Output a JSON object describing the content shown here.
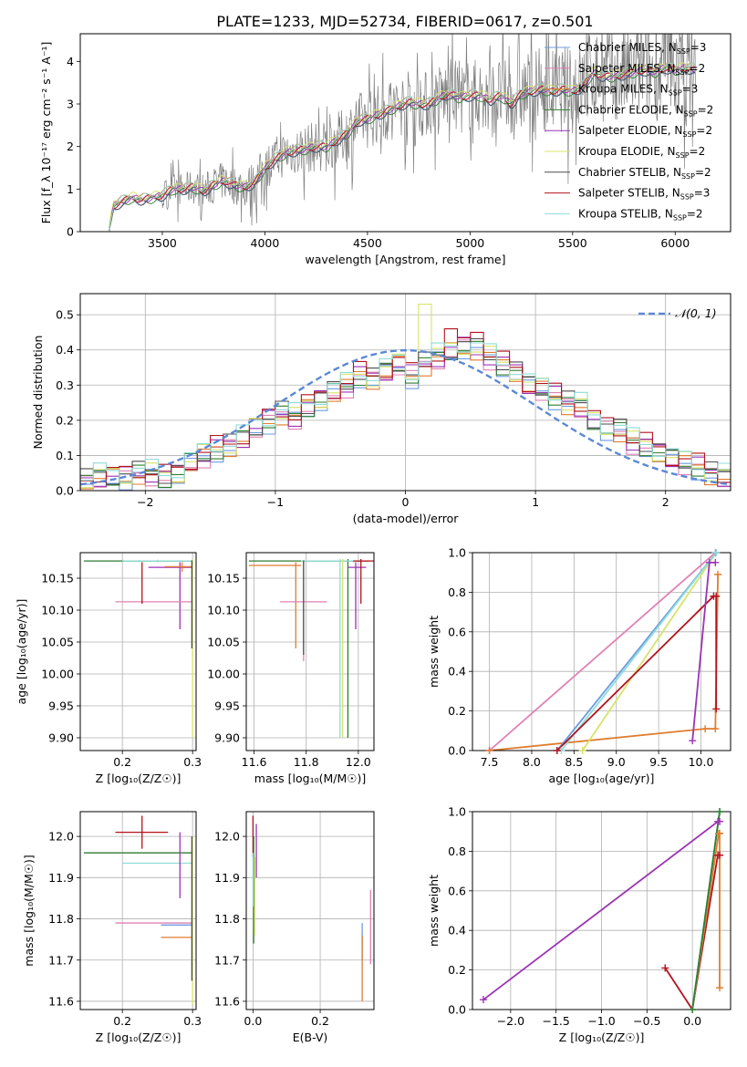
{
  "figure": {
    "title": "PLATE=1233, MJD=52734, FIBERID=0617, z=0.501"
  },
  "colors": {
    "Chabrier MILES": "#6b9be0",
    "Salpeter MILES": "#e081b5",
    "Kroupa MILES": "#e07c2e",
    "Chabrier ELODIE": "#2f7d32",
    "Salpeter ELODIE": "#9c33b5",
    "Kroupa ELODIE": "#d7e36b",
    "Chabrier STELIB": "#4d4d4d",
    "Salpeter STELIB": "#b3121d",
    "Kroupa STELIB": "#8fdcd8",
    "data": "#808080",
    "normal": "#5b88d6"
  },
  "chart_data": [
    {
      "id": "spectrum",
      "type": "line",
      "xlabel": "wavelength [Angstrom, rest frame]",
      "ylabel": "Flux [f_λ 10⁻¹⁷ erg cm⁻² s⁻¹ A⁻¹]",
      "xlim": [
        3100,
        6270
      ],
      "ylim": [
        0,
        4.65
      ],
      "xticks": [
        3500,
        4000,
        4500,
        5000,
        5500,
        6000
      ],
      "yticks": [
        0,
        1,
        2,
        3,
        4
      ],
      "grid": false,
      "legend_position": "top-right",
      "legend": [
        {
          "model": "Chabrier MILES",
          "label": "Chabrier MILES, N_SSP=3"
        },
        {
          "model": "Salpeter MILES",
          "label": "Salpeter MILES, N_SSP=2"
        },
        {
          "model": "Kroupa MILES",
          "label": "Kroupa MILES, N_SSP=3"
        },
        {
          "model": "Chabrier ELODIE",
          "label": "Chabrier ELODIE, N_SSP=2"
        },
        {
          "model": "Salpeter ELODIE",
          "label": "Salpeter ELODIE, N_SSP=2"
        },
        {
          "model": "Kroupa ELODIE",
          "label": "Kroupa ELODIE, N_SSP=2"
        },
        {
          "model": "Chabrier STELIB",
          "label": "Chabrier STELIB, N_SSP=2"
        },
        {
          "model": "Salpeter STELIB",
          "label": "Salpeter STELIB, N_SSP=3"
        },
        {
          "model": "Kroupa STELIB",
          "label": "Kroupa STELIB, N_SSP=2"
        }
      ],
      "continuum": {
        "x": [
          3240,
          3260,
          3300,
          3350,
          3400,
          3450,
          3500,
          3550,
          3600,
          3650,
          3700,
          3750,
          3800,
          3850,
          3900,
          3950,
          4000,
          4050,
          4100,
          4150,
          4200,
          4250,
          4300,
          4350,
          4400,
          4450,
          4500,
          4550,
          4600,
          4650,
          4700,
          4750,
          4800,
          4850,
          4900,
          4950,
          5000,
          5050,
          5100,
          5150,
          5200,
          5250,
          5300,
          5350,
          5400,
          5450,
          5500,
          5550,
          5600,
          5650,
          5700,
          5750,
          5800,
          5850,
          5900,
          5950,
          6000,
          6050,
          6100
        ],
        "y": [
          0.0,
          0.6,
          0.7,
          0.8,
          0.75,
          0.8,
          0.85,
          1.0,
          1.0,
          1.05,
          0.95,
          1.1,
          1.2,
          1.1,
          1.05,
          1.15,
          1.5,
          1.7,
          1.85,
          1.9,
          1.95,
          2.0,
          2.0,
          2.15,
          2.3,
          2.6,
          2.65,
          2.75,
          2.85,
          2.95,
          3.05,
          3.0,
          3.0,
          3.15,
          3.25,
          3.15,
          3.2,
          3.2,
          3.1,
          3.2,
          3.0,
          3.25,
          3.3,
          3.35,
          3.3,
          3.35,
          3.3,
          3.4,
          3.75,
          3.65,
          3.65,
          3.7,
          3.75,
          3.8,
          3.75,
          3.85,
          3.8,
          3.85,
          3.8
        ]
      },
      "data_noise_start": 3500
    },
    {
      "id": "residuals",
      "type": "histogram",
      "xlabel": "(data-model)/error",
      "ylabel": "Normed distribution",
      "xlim": [
        -2.5,
        2.5
      ],
      "ylim": [
        0,
        0.56
      ],
      "xticks": [
        -2,
        -1,
        0,
        1,
        2
      ],
      "yticks": [
        0.0,
        0.1,
        0.2,
        0.3,
        0.4,
        0.5
      ],
      "grid": true,
      "legend": "𝒩(0, 1)",
      "legend_position": "top-right",
      "bin_edges": [
        -2.5,
        -2.4,
        -2.3,
        -2.2,
        -2.1,
        -2.0,
        -1.9,
        -1.8,
        -1.7,
        -1.6,
        -1.5,
        -1.4,
        -1.3,
        -1.2,
        -1.1,
        -1.0,
        -0.9,
        -0.8,
        -0.7,
        -0.6,
        -0.5,
        -0.4,
        -0.3,
        -0.2,
        -0.1,
        0.0,
        0.1,
        0.2,
        0.3,
        0.4,
        0.5,
        0.6,
        0.7,
        0.8,
        0.9,
        1.0,
        1.1,
        1.2,
        1.3,
        1.4,
        1.5,
        1.6,
        1.7,
        1.8,
        1.9,
        2.0,
        2.1,
        2.2,
        2.3,
        2.4,
        2.5
      ],
      "base_counts": [
        0.03,
        0.04,
        0.04,
        0.04,
        0.05,
        0.05,
        0.04,
        0.05,
        0.08,
        0.1,
        0.12,
        0.13,
        0.15,
        0.18,
        0.2,
        0.22,
        0.21,
        0.24,
        0.26,
        0.28,
        0.3,
        0.33,
        0.32,
        0.34,
        0.36,
        0.33,
        0.36,
        0.38,
        0.4,
        0.41,
        0.4,
        0.38,
        0.36,
        0.34,
        0.3,
        0.29,
        0.27,
        0.25,
        0.24,
        0.2,
        0.18,
        0.17,
        0.14,
        0.13,
        0.11,
        0.09,
        0.08,
        0.07,
        0.05,
        0.04
      ],
      "spikes": [
        {
          "model": "Kroupa ELODIE",
          "bin": 26,
          "value": 0.53
        },
        {
          "model": "Salpeter STELIB",
          "bin": 28,
          "value": 0.46
        },
        {
          "model": "Salpeter STELIB",
          "bin": 30,
          "value": 0.45
        }
      ]
    },
    {
      "id": "age_vs_Z",
      "type": "errorbar",
      "xlabel": "Z [log₁₀(Z/Z☉)]",
      "ylabel": "age  [log₁₀(age/yr)]",
      "xlim": [
        0.14,
        0.305
      ],
      "ylim": [
        9.88,
        10.19
      ],
      "xticks": [
        0.2,
        0.3
      ],
      "yticks": [
        9.9,
        9.95,
        10.0,
        10.05,
        10.1,
        10.15
      ],
      "grid": true,
      "points": [
        {
          "model": "Chabrier ELODIE",
          "x": 0.224,
          "y": 10.177,
          "xlo": 0.145,
          "xhi": 0.3,
          "ylo": 10.176,
          "yhi": 10.178
        },
        {
          "model": "Kroupa STELIB",
          "x": 0.25,
          "y": 10.177,
          "xlo": 0.2,
          "xhi": 0.3,
          "ylo": 10.175,
          "yhi": 10.179
        },
        {
          "model": "Salpeter ELODIE",
          "x": 0.282,
          "y": 10.167,
          "xlo": 0.237,
          "xhi": 0.3,
          "ylo": 10.07,
          "yhi": 10.175
        },
        {
          "model": "Salpeter MILES",
          "x": 0.235,
          "y": 10.113,
          "xlo": 0.19,
          "xhi": 0.3,
          "ylo": 10.113,
          "yhi": 10.113
        },
        {
          "model": "Salpeter STELIB",
          "x": 0.228,
          "y": 10.165,
          "xlo": 0.228,
          "xhi": 0.228,
          "ylo": 10.11,
          "yhi": 10.175
        },
        {
          "model": "Kroupa MILES",
          "x": 0.285,
          "y": 10.168,
          "xlo": 0.26,
          "xhi": 0.3,
          "ylo": 10.16,
          "yhi": 10.175
        },
        {
          "model": "Kroupa ELODIE",
          "x": 0.3,
          "y": 10.176,
          "xlo": 0.3,
          "xhi": 0.3,
          "ylo": 9.9,
          "yhi": 10.18
        },
        {
          "model": "Chabrier STELIB",
          "x": 0.299,
          "y": 10.17,
          "xlo": 0.299,
          "xhi": 0.299,
          "ylo": 10.04,
          "yhi": 10.178
        }
      ]
    },
    {
      "id": "age_vs_mass",
      "type": "errorbar",
      "xlabel": "mass [log₁₀(M/M☉)]",
      "xlim": [
        11.57,
        12.06
      ],
      "ylim": [
        9.88,
        10.19
      ],
      "xticks": [
        11.6,
        11.8,
        12.0
      ],
      "yticks": [
        9.9,
        9.95,
        10.0,
        10.05,
        10.1,
        10.15
      ],
      "grid": true,
      "points": [
        {
          "model": "Kroupa MILES",
          "x": 11.76,
          "y": 10.17,
          "xlo": 11.58,
          "xhi": 11.78,
          "ylo": 10.04,
          "yhi": 10.175
        },
        {
          "model": "Salpeter MILES",
          "x": 11.79,
          "y": 10.113,
          "xlo": 11.7,
          "xhi": 11.88,
          "ylo": 10.02,
          "yhi": 10.175
        },
        {
          "model": "Chabrier ELODIE",
          "x": 11.96,
          "y": 10.177,
          "xlo": 11.58,
          "xhi": 12.04,
          "ylo": 9.9,
          "yhi": 10.18
        },
        {
          "model": "Kroupa STELIB",
          "x": 11.93,
          "y": 10.177,
          "xlo": 11.78,
          "xhi": 12.0,
          "ylo": 9.9,
          "yhi": 10.18
        },
        {
          "model": "Salpeter ELODIE",
          "x": 11.99,
          "y": 10.167,
          "xlo": 11.96,
          "xhi": 12.03,
          "ylo": 10.07,
          "yhi": 10.175
        },
        {
          "model": "Salpeter STELIB",
          "x": 12.01,
          "y": 10.177,
          "xlo": 11.98,
          "xhi": 12.06,
          "ylo": 10.11,
          "yhi": 10.18
        },
        {
          "model": "Kroupa ELODIE",
          "x": 11.94,
          "y": 10.176,
          "xlo": 11.94,
          "xhi": 11.94,
          "ylo": 9.9,
          "yhi": 10.18
        },
        {
          "model": "Chabrier STELIB",
          "x": 11.79,
          "y": 10.17,
          "xlo": 11.79,
          "xhi": 11.79,
          "ylo": 10.03,
          "yhi": 10.178
        }
      ]
    },
    {
      "id": "weight_vs_age",
      "type": "line",
      "xlabel": "age  [log₁₀(age/yr)]",
      "ylabel": "mass weight",
      "xlim": [
        7.3,
        10.35
      ],
      "ylim": [
        0,
        1
      ],
      "xticks": [
        7.5,
        8.0,
        8.5,
        9.0,
        9.5,
        10.0
      ],
      "yticks": [
        0.0,
        0.2,
        0.4,
        0.6,
        0.8,
        1.0
      ],
      "grid": true,
      "series": [
        {
          "model": "Salpeter MILES",
          "x": [
            7.5,
            10.17
          ],
          "y": [
            0.0,
            1.0
          ]
        },
        {
          "model": "Kroupa MILES",
          "x": [
            7.5,
            10.05,
            10.17,
            10.2
          ],
          "y": [
            0.0,
            0.11,
            0.11,
            0.89
          ]
        },
        {
          "model": "Kroupa ELODIE",
          "x": [
            8.6,
            10.18
          ],
          "y": [
            0.0,
            1.0
          ]
        },
        {
          "model": "Chabrier MILES",
          "x": [
            8.3,
            10.18
          ],
          "y": [
            0.0,
            1.0
          ]
        },
        {
          "model": "Kroupa STELIB",
          "x": [
            8.35,
            10.18
          ],
          "y": [
            0.0,
            1.0
          ]
        },
        {
          "model": "Salpeter STELIB",
          "x": [
            8.3,
            10.15,
            10.18,
            10.18
          ],
          "y": [
            0.0,
            0.78,
            0.78,
            0.21
          ]
        },
        {
          "model": "Salpeter ELODIE",
          "x": [
            9.9,
            10.1,
            10.17
          ],
          "y": [
            0.05,
            0.95,
            0.95
          ]
        }
      ]
    },
    {
      "id": "mass_vs_Z",
      "type": "errorbar",
      "xlabel": "Z [log₁₀(Z/Z☉)]",
      "ylabel": "mass [log₁₀(M/M☉)]",
      "xlim": [
        0.14,
        0.305
      ],
      "ylim": [
        11.58,
        12.06
      ],
      "xticks": [
        0.2,
        0.3
      ],
      "yticks": [
        11.6,
        11.7,
        11.8,
        11.9,
        12.0
      ],
      "grid": true,
      "points": [
        {
          "model": "Salpeter STELIB",
          "x": 0.228,
          "y": 12.01,
          "xlo": 0.19,
          "xhi": 0.265,
          "ylo": 11.97,
          "yhi": 12.05
        },
        {
          "model": "Chabrier ELODIE",
          "x": 0.224,
          "y": 11.96,
          "xlo": 0.145,
          "xhi": 0.3,
          "ylo": 11.96,
          "yhi": 11.96
        },
        {
          "model": "Kroupa STELIB",
          "x": 0.25,
          "y": 11.935,
          "xlo": 0.2,
          "xhi": 0.3,
          "ylo": 11.935,
          "yhi": 11.935
        },
        {
          "model": "Salpeter ELODIE",
          "x": 0.282,
          "y": 11.99,
          "xlo": 0.282,
          "xhi": 0.282,
          "ylo": 11.85,
          "yhi": 12.01
        },
        {
          "model": "Salpeter MILES",
          "x": 0.235,
          "y": 11.79,
          "xlo": 0.19,
          "xhi": 0.3,
          "ylo": 11.79,
          "yhi": 11.79
        },
        {
          "model": "Chabrier MILES",
          "x": 0.28,
          "y": 11.785,
          "xlo": 0.255,
          "xhi": 0.3,
          "ylo": 11.785,
          "yhi": 11.785
        },
        {
          "model": "Kroupa MILES",
          "x": 0.28,
          "y": 11.755,
          "xlo": 0.255,
          "xhi": 0.3,
          "ylo": 11.755,
          "yhi": 11.755
        },
        {
          "model": "Kroupa ELODIE",
          "x": 0.3,
          "y": 11.8,
          "xlo": 0.3,
          "xhi": 0.3,
          "ylo": 11.59,
          "yhi": 12.0
        },
        {
          "model": "Chabrier STELIB",
          "x": 0.299,
          "y": 11.8,
          "xlo": 0.299,
          "xhi": 0.299,
          "ylo": 11.65,
          "yhi": 12.0
        }
      ]
    },
    {
      "id": "mass_vs_ebv",
      "type": "errorbar",
      "xlabel": "E(B-V)",
      "xlim": [
        -0.02,
        0.36
      ],
      "ylim": [
        11.58,
        12.06
      ],
      "xticks": [
        0.0,
        0.2
      ],
      "yticks": [
        11.6,
        11.7,
        11.8,
        11.9,
        12.0
      ],
      "grid": true,
      "points": [
        {
          "model": "Salpeter STELIB",
          "x": 0.0,
          "y": 12.0,
          "xlo": 0.0,
          "xhi": 0.0,
          "ylo": 11.95,
          "yhi": 12.05
        },
        {
          "model": "Salpeter ELODIE",
          "x": 0.01,
          "y": 11.97,
          "xlo": 0.01,
          "xhi": 0.01,
          "ylo": 11.9,
          "yhi": 12.03
        },
        {
          "model": "Chabrier ELODIE",
          "x": 0.002,
          "y": 11.9,
          "xlo": 0.002,
          "xhi": 0.002,
          "ylo": 11.74,
          "yhi": 12.0
        },
        {
          "model": "Kroupa ELODIE",
          "x": 0.005,
          "y": 11.85,
          "xlo": 0.005,
          "xhi": 0.005,
          "ylo": 11.76,
          "yhi": 11.95
        },
        {
          "model": "Kroupa STELIB",
          "x": 0.0,
          "y": 11.93,
          "xlo": 0.0,
          "xhi": 0.0,
          "ylo": 11.83,
          "yhi": 11.96
        },
        {
          "model": "Chabrier MILES",
          "x": 0.325,
          "y": 11.76,
          "xlo": 0.325,
          "xhi": 0.325,
          "ylo": 11.7,
          "yhi": 11.79
        },
        {
          "model": "Kroupa MILES",
          "x": 0.325,
          "y": 11.68,
          "xlo": 0.325,
          "xhi": 0.325,
          "ylo": 11.6,
          "yhi": 11.76
        },
        {
          "model": "Salpeter MILES",
          "x": 0.35,
          "y": 11.78,
          "xlo": 0.35,
          "xhi": 0.35,
          "ylo": 11.69,
          "yhi": 11.87
        }
      ]
    },
    {
      "id": "weight_vs_Z",
      "type": "line",
      "xlabel": "Z [log₁₀(Z/Z☉)]",
      "ylabel": "mass weight",
      "xlim": [
        -2.42,
        0.42
      ],
      "ylim": [
        0,
        1
      ],
      "xticks": [
        -2.0,
        -1.5,
        -1.0,
        -0.5,
        0.0
      ],
      "yticks": [
        0.0,
        0.2,
        0.4,
        0.6,
        0.8,
        1.0
      ],
      "grid": true,
      "series": [
        {
          "model": "Salpeter ELODIE",
          "x": [
            -2.3,
            0.28,
            0.3
          ],
          "y": [
            0.05,
            0.95,
            0.95
          ]
        },
        {
          "model": "Salpeter STELIB",
          "x": [
            -0.3,
            0.0,
            0.28,
            0.3
          ],
          "y": [
            0.21,
            0.0,
            0.78,
            0.78
          ]
        },
        {
          "model": "Kroupa MILES",
          "x": [
            0.0,
            0.29,
            0.3,
            0.3
          ],
          "y": [
            0.0,
            0.89,
            0.89,
            0.11
          ]
        },
        {
          "model": "Chabrier MILES",
          "x": [
            0.0,
            0.3
          ],
          "y": [
            0.0,
            1.0
          ]
        },
        {
          "model": "Kroupa ELODIE",
          "x": [
            0.0,
            0.3
          ],
          "y": [
            0.0,
            1.0
          ]
        },
        {
          "model": "Kroupa STELIB",
          "x": [
            0.0,
            0.3
          ],
          "y": [
            0.0,
            1.0
          ]
        },
        {
          "model": "Chabrier ELODIE",
          "x": [
            0.0,
            0.3
          ],
          "y": [
            0.0,
            1.0
          ]
        }
      ]
    }
  ]
}
